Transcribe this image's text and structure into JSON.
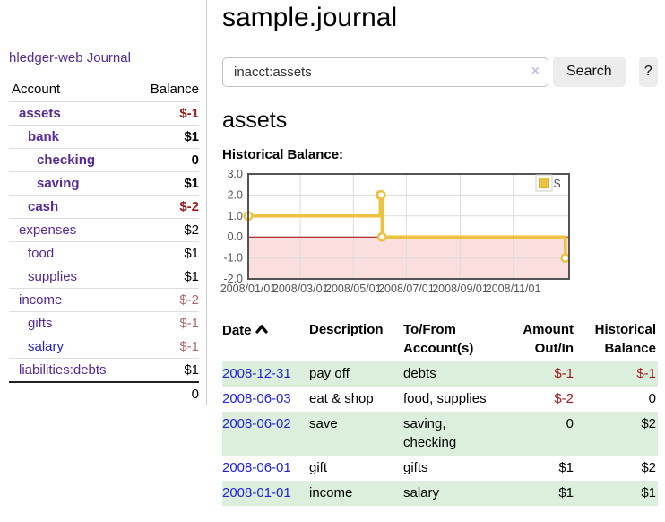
{
  "sidebar": {
    "brand": "hledger-web",
    "nav": {
      "journal": "Journal"
    },
    "table": {
      "col_account": "Account",
      "col_balance": "Balance"
    },
    "accounts": [
      {
        "name": "assets",
        "balance": "$-1"
      },
      {
        "name": "bank",
        "balance": "$1"
      },
      {
        "name": "checking",
        "balance": "0"
      },
      {
        "name": "saving",
        "balance": "$1"
      },
      {
        "name": "cash",
        "balance": "$-2"
      },
      {
        "name": "expenses",
        "balance": "$2"
      },
      {
        "name": "food",
        "balance": "$1"
      },
      {
        "name": "supplies",
        "balance": "$1"
      },
      {
        "name": "income",
        "balance": "$-2"
      },
      {
        "name": "gifts",
        "balance": "$-1"
      },
      {
        "name": "salary",
        "balance": "$-1"
      },
      {
        "name": "liabilities:debts",
        "balance": "$1"
      }
    ],
    "total": "0"
  },
  "main": {
    "title": "sample.journal",
    "search": {
      "query": "inacct:assets",
      "clear_icon": "×",
      "search_button": "Search",
      "help_button": "?"
    },
    "account_heading": "assets",
    "chart_title": "Historical Balance:",
    "chart_data": {
      "type": "line",
      "step": true,
      "title": "Historical Balance",
      "series": [
        {
          "name": "$",
          "color": "#edc240",
          "points": [
            [
              "2008-01-01",
              1
            ],
            [
              "2008-06-01",
              2
            ],
            [
              "2008-06-02",
              2
            ],
            [
              "2008-06-03",
              0
            ],
            [
              "2008-12-31",
              -1
            ]
          ]
        }
      ],
      "ylim": [
        -2,
        3
      ],
      "yticks": [
        "3.0",
        "2.0",
        "1.0",
        "0.0",
        "-1.0",
        "-2.0"
      ],
      "xticks": [
        "2008/01/01",
        "2008/03/01",
        "2008/05/01",
        "2008/07/01",
        "2008/09/01",
        "2008/11/01"
      ],
      "grid": true,
      "legend_position": "top-right",
      "zero_line_color": "#990000",
      "negative_region_color": "#fbdede"
    },
    "register": {
      "headers": {
        "date": "Date",
        "description": "Description",
        "accounts": "To/From Account(s)",
        "amount": "Amount Out/In",
        "balance": "Historical Balance"
      },
      "rows": [
        {
          "date": "2008-12-31",
          "description": "pay off",
          "accounts": "debts",
          "amount": "$-1",
          "balance": "$-1"
        },
        {
          "date": "2008-06-03",
          "description": "eat & shop",
          "accounts": "food, supplies",
          "amount": "$-2",
          "balance": "0"
        },
        {
          "date": "2008-06-02",
          "description": "save",
          "accounts": "saving, checking",
          "amount": "0",
          "balance": "$2"
        },
        {
          "date": "2008-06-01",
          "description": "gift",
          "accounts": "gifts",
          "amount": "$1",
          "balance": "$2"
        },
        {
          "date": "2008-01-01",
          "description": "income",
          "accounts": "salary",
          "amount": "$1",
          "balance": "$1"
        }
      ]
    }
  },
  "colors": {
    "accent_purple": "#552a96",
    "link_blue": "#2222dd",
    "negative_red": "#9b1c1c",
    "muted_negative": "#b06a6a",
    "row_stripe_green": "#dcefdc",
    "series_gold": "#edc240"
  }
}
